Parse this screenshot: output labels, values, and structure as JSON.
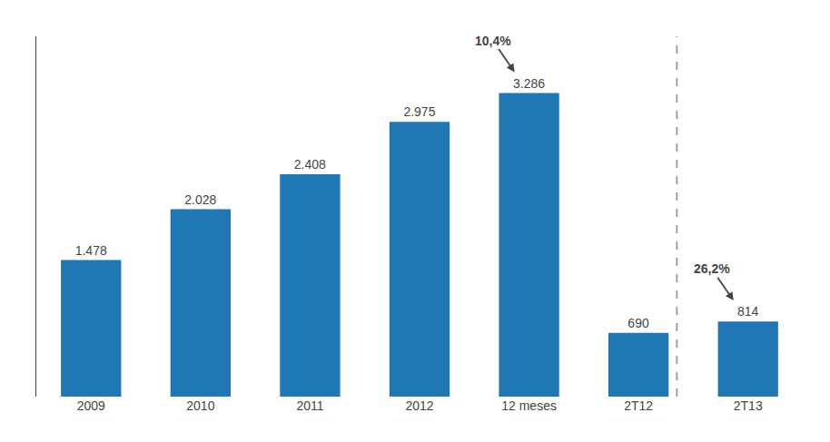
{
  "chart_data": {
    "type": "bar",
    "categories": [
      "2009",
      "2010",
      "2011",
      "2012",
      "12 meses",
      "2T12",
      "2T13"
    ],
    "values": [
      1478,
      2028,
      2408,
      2975,
      3286,
      690,
      814
    ],
    "value_labels": [
      "1.478",
      "2.028",
      "2.408",
      "2.975",
      "3.286",
      "690",
      "814"
    ],
    "data_labels": true,
    "ylim": [
      0,
      3900
    ],
    "tick_labels": "x",
    "grid": false,
    "annotations": [
      {
        "text": "10,4%",
        "category": "12 meses"
      },
      {
        "text": "26,2%",
        "category": "2T13"
      }
    ]
  }
}
